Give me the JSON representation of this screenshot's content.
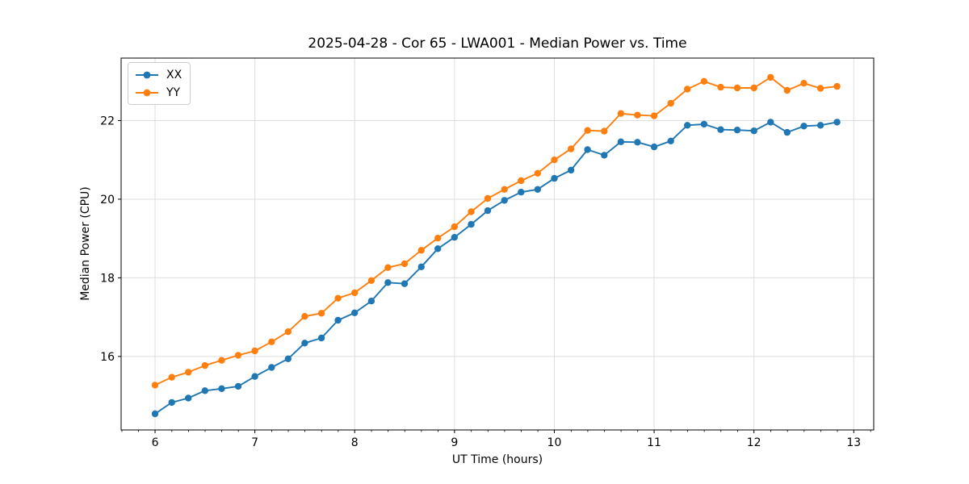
{
  "chart_data": {
    "type": "line",
    "title": "2025-04-28 - Cor 65 - LWA001 - Median Power vs. Time",
    "xlabel": "UT Time (hours)",
    "ylabel": "Median Power (CPU)",
    "xlim": [
      5.66,
      13.2
    ],
    "ylim": [
      14.13,
      23.59
    ],
    "xticks": [
      6,
      7,
      8,
      9,
      10,
      11,
      12,
      13
    ],
    "yticks": [
      16,
      18,
      20,
      22
    ],
    "x_minor_tick_step": 0.1667,
    "grid": true,
    "legend_position": "upper-left",
    "x": [
      6.0,
      6.167,
      6.333,
      6.5,
      6.667,
      6.833,
      7.0,
      7.167,
      7.333,
      7.5,
      7.667,
      7.833,
      8.0,
      8.167,
      8.333,
      8.5,
      8.667,
      8.833,
      9.0,
      9.167,
      9.333,
      9.5,
      9.667,
      9.833,
      10.0,
      10.167,
      10.333,
      10.5,
      10.667,
      10.833,
      11.0,
      11.167,
      11.333,
      11.5,
      11.667,
      11.833,
      12.0,
      12.167,
      12.333,
      12.5,
      12.667,
      12.833
    ],
    "series": [
      {
        "name": "XX",
        "color": "#1f77b4",
        "values": [
          14.54,
          14.83,
          14.94,
          15.13,
          15.18,
          15.24,
          15.49,
          15.72,
          15.94,
          16.34,
          16.47,
          16.92,
          17.11,
          17.41,
          17.88,
          17.85,
          18.28,
          18.74,
          19.03,
          19.36,
          19.71,
          19.97,
          20.18,
          20.25,
          20.53,
          20.74,
          21.26,
          21.12,
          21.46,
          21.45,
          21.33,
          21.48,
          21.88,
          21.91,
          21.77,
          21.76,
          21.74,
          21.96,
          21.7,
          21.86,
          21.88,
          21.96
        ]
      },
      {
        "name": "YY",
        "color": "#ff7f0e",
        "values": [
          15.27,
          15.47,
          15.6,
          15.77,
          15.9,
          16.03,
          16.14,
          16.37,
          16.63,
          17.02,
          17.1,
          17.48,
          17.62,
          17.93,
          18.26,
          18.36,
          18.7,
          19.01,
          19.3,
          19.68,
          20.02,
          20.25,
          20.47,
          20.66,
          21.0,
          21.28,
          21.75,
          21.73,
          22.18,
          22.14,
          22.12,
          22.44,
          22.8,
          23.0,
          22.85,
          22.83,
          22.83,
          23.1,
          22.77,
          22.95,
          22.82,
          22.87
        ]
      }
    ]
  },
  "colors": {
    "background": "#ffffff",
    "grid": "#dedede",
    "spine": "#000000",
    "tick_text": "#000000"
  }
}
